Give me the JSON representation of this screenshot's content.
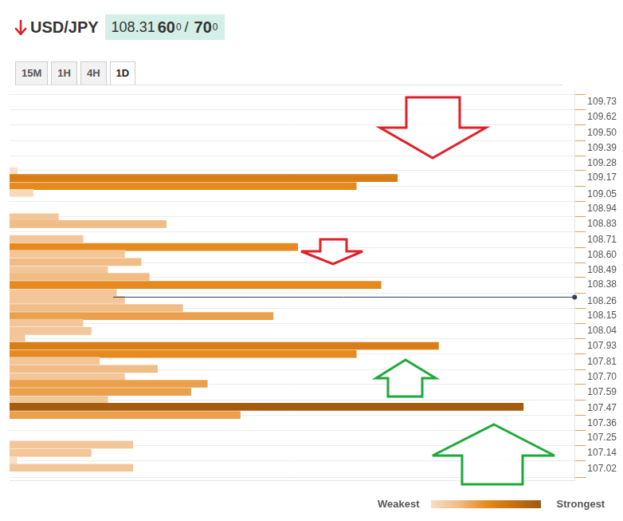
{
  "header": {
    "pair": "USD/JPY",
    "price": "108.31",
    "pips": "60",
    "pipette": "0",
    "separator": "/",
    "ask_pips": "70",
    "ask_pipette": "0"
  },
  "tabs": [
    "15M",
    "1H",
    "4H",
    "1D"
  ],
  "active_tab": "1D",
  "strength_scale": {
    "low": "Weakest",
    "high": "Strongest"
  },
  "chart_data": {
    "type": "bar",
    "orientation": "horizontal",
    "y": [
      109.22,
      109.17,
      109.11,
      109.06,
      108.88,
      108.83,
      108.72,
      108.66,
      108.61,
      108.55,
      108.49,
      108.44,
      108.38,
      108.32,
      108.27,
      108.21,
      108.15,
      108.1,
      108.04,
      107.99,
      107.93,
      107.87,
      107.82,
      107.76,
      107.7,
      107.65,
      107.59,
      107.53,
      107.48,
      107.42,
      107.2,
      107.14,
      107.08,
      107.03
    ],
    "values": [
      0.15,
      7.55,
      6.75,
      0.46,
      0.95,
      3.05,
      1.43,
      5.61,
      2.24,
      2.56,
      1.91,
      2.72,
      7.23,
      2.08,
      2.24,
      3.37,
      5.13,
      1.43,
      1.59,
      0.3,
      8.35,
      6.75,
      1.75,
      2.88,
      2.24,
      3.85,
      3.53,
      1.91,
      10,
      4.49,
      2.4,
      1.59,
      0.14,
      2.4
    ],
    "colors": [
      "#f8e0c8",
      "#d97e16",
      "#e68a1f",
      "#f8d9b8",
      "#f3c69a",
      "#f0bd86",
      "#f3c69a",
      "#e68a1f",
      "#f3c69a",
      "#f0bd86",
      "#f3c69a",
      "#f0bd86",
      "#e68a1f",
      "#f3c69a",
      "#f3c69a",
      "#f0bd86",
      "#eba04c",
      "#f3c69a",
      "#f3c69a",
      "#f3c69a",
      "#d97e16",
      "#e68a1f",
      "#f3c69a",
      "#f0bd86",
      "#f3c69a",
      "#eba04c",
      "#eba04c",
      "#f3c69a",
      "#a65c0f",
      "#eba04c",
      "#f3c69a",
      "#f3c69a",
      "#f8e0c8",
      "#f3c69a"
    ],
    "xlim": [
      0,
      11
    ],
    "ylim": [
      106.99,
      109.76
    ],
    "yticks": [
      107.02,
      107.14,
      107.25,
      107.36,
      107.47,
      107.59,
      {
        "value": 107.7,
        "label": "107.70"
      },
      107.81,
      107.93,
      108.04,
      108.15,
      108.26,
      108.38,
      108.49,
      {
        "value": 108.6,
        "label": "108.60"
      },
      108.71,
      108.83,
      108.94,
      109.05,
      109.17,
      109.28,
      109.39,
      {
        "value": 109.5,
        "label": "109.50"
      },
      109.62,
      109.73
    ],
    "price_line": 108.29,
    "grid": true,
    "tick_labels": "y"
  }
}
